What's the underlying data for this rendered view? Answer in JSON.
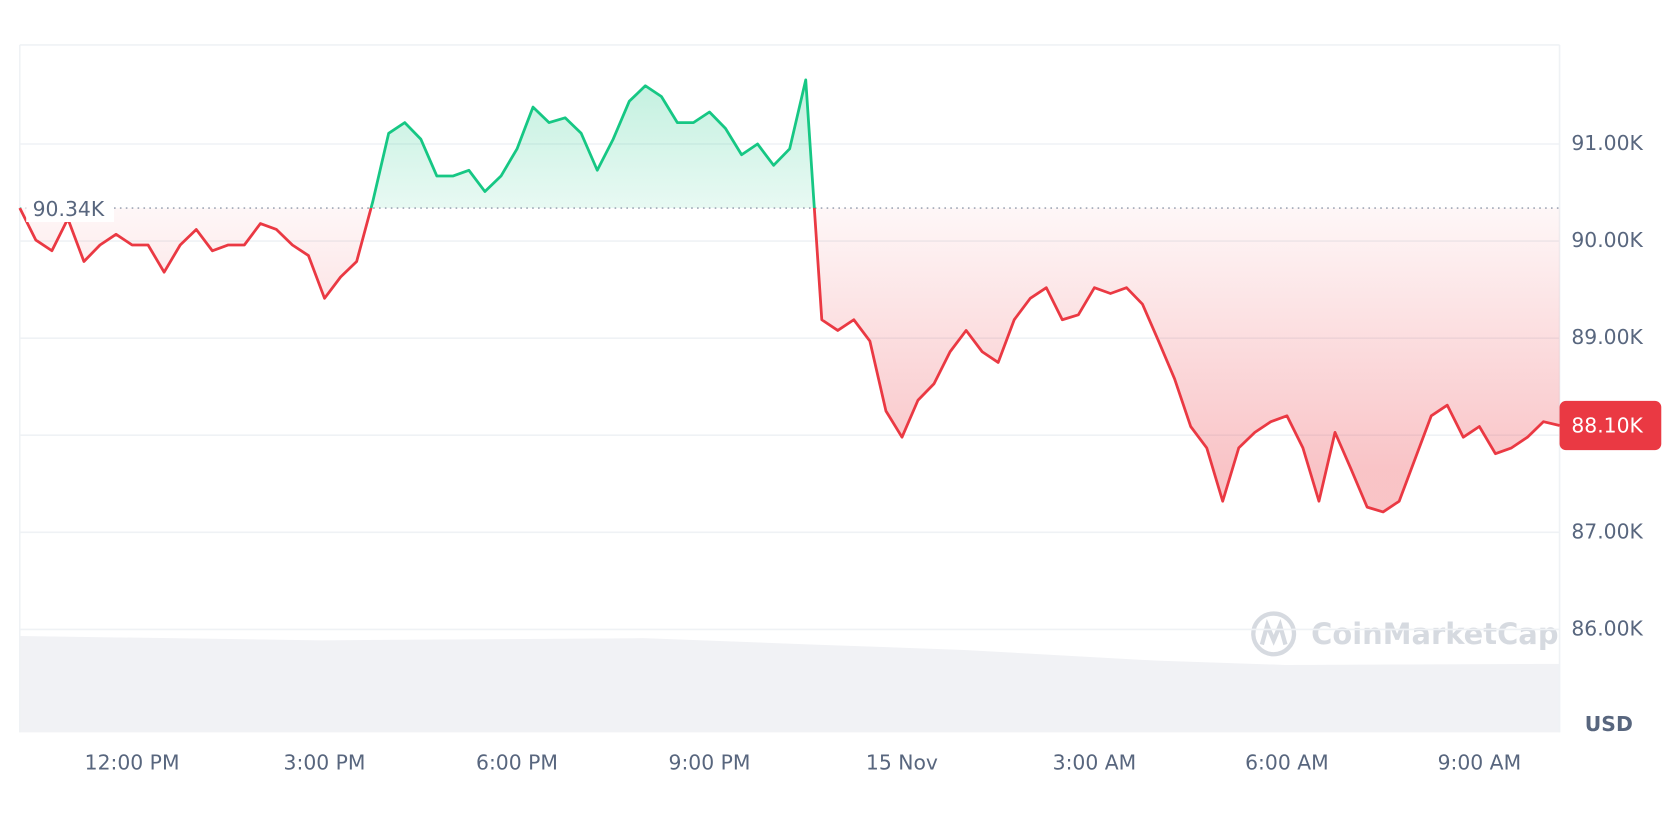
{
  "chart_data": {
    "type": "line",
    "x": [
      10.25,
      10.5,
      10.75,
      11,
      11.25,
      11.5,
      11.75,
      12,
      12.25,
      12.5,
      12.75,
      13,
      13.25,
      13.5,
      13.75,
      14,
      14.25,
      14.5,
      14.75,
      15,
      15.25,
      15.5,
      15.75,
      16,
      16.25,
      16.5,
      16.75,
      17,
      17.25,
      17.5,
      17.75,
      18,
      18.25,
      18.5,
      18.75,
      19,
      19.25,
      19.5,
      19.75,
      20,
      20.25,
      20.5,
      20.75,
      21,
      21.25,
      21.5,
      21.75,
      22,
      22.25,
      22.5,
      22.75,
      23,
      23.25,
      23.5,
      23.75,
      24,
      24.25,
      24.5,
      24.75,
      25,
      25.25,
      25.5,
      25.75,
      26,
      26.25,
      26.5,
      26.75,
      27,
      27.25,
      27.5,
      27.75,
      28,
      28.25,
      28.5,
      28.75,
      29,
      29.25,
      29.5,
      29.75,
      30,
      30.25,
      30.5,
      30.75,
      31,
      31.25,
      31.5,
      31.75,
      32,
      32.25,
      32.5,
      32.75,
      33,
      33.25,
      33.5,
      33.75,
      34,
      34.25
    ],
    "values": [
      90340,
      90010,
      89900,
      90230,
      89790,
      89960,
      90070,
      89960,
      89960,
      89680,
      89960,
      90120,
      89900,
      89960,
      89960,
      90180,
      90120,
      89960,
      89850,
      89410,
      89630,
      89790,
      90400,
      91110,
      91220,
      91050,
      90670,
      90670,
      90730,
      90510,
      90670,
      90950,
      91380,
      91220,
      91270,
      91110,
      90730,
      91050,
      91440,
      91600,
      91490,
      91220,
      91220,
      91330,
      91160,
      90890,
      91000,
      90780,
      90950,
      91660,
      89190,
      89080,
      89190,
      88970,
      88250,
      87980,
      88360,
      88530,
      88860,
      89080,
      88860,
      88750,
      89190,
      89410,
      89520,
      89190,
      89240,
      89520,
      89460,
      89520,
      89350,
      88970,
      88580,
      88090,
      87870,
      87320,
      87870,
      88030,
      88140,
      88200,
      87870,
      87320,
      88030,
      87650,
      87260,
      87210,
      87320,
      87760,
      88200,
      88310,
      87980,
      88090,
      87810,
      87870,
      87980,
      88140,
      88100
    ],
    "xlim": [
      10.25,
      34.25
    ],
    "ylim": [
      84950,
      92020
    ],
    "xticks": [
      {
        "value": 12,
        "label": "12:00 PM"
      },
      {
        "value": 15,
        "label": "3:00 PM"
      },
      {
        "value": 18,
        "label": "6:00 PM"
      },
      {
        "value": 21,
        "label": "9:00 PM"
      },
      {
        "value": 24,
        "label": "15 Nov"
      },
      {
        "value": 27,
        "label": "3:00 AM"
      },
      {
        "value": 30,
        "label": "6:00 AM"
      },
      {
        "value": 33,
        "label": "9:00 AM"
      }
    ],
    "yticks": [
      {
        "value": 86000,
        "label": "86.00K"
      },
      {
        "value": 87000,
        "label": "87.00K"
      },
      {
        "value": 88000,
        "label": "88.00K"
      },
      {
        "value": 89000,
        "label": "89.00K"
      },
      {
        "value": 90000,
        "label": "90.00K"
      },
      {
        "value": 91000,
        "label": "91.00K"
      }
    ],
    "baseline": {
      "value": 90340,
      "label": "90.34K"
    },
    "current": {
      "value": 88100,
      "label": "88.10K"
    },
    "up_color": "#16c784",
    "down_color": "#ea3943",
    "grid": true,
    "currency": "USD",
    "watermark": "CoinMarketCap"
  }
}
